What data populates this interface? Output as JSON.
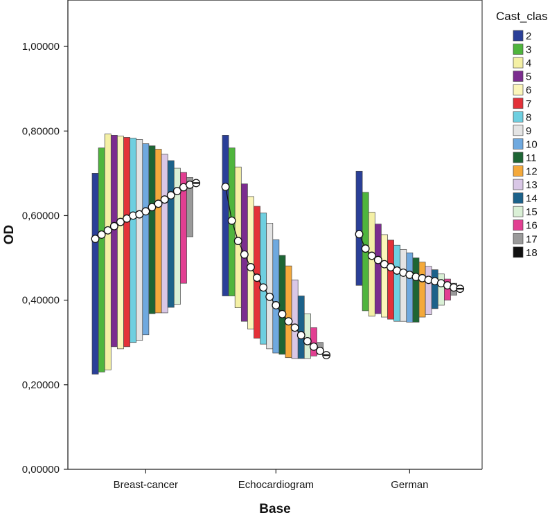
{
  "chart_data": {
    "type": "high-low-close",
    "title": "",
    "xlabel": "Base",
    "ylabel": "OD",
    "ylim": [
      0,
      1.1
    ],
    "yticks": [
      0,
      0.2,
      0.4,
      0.6,
      0.8,
      1.0
    ],
    "ytick_labels": [
      "0,00000",
      "0,20000",
      "0,40000",
      "0,60000",
      "0,80000",
      "1,00000"
    ],
    "categories": [
      "Breast-cancer",
      "Echocardiogram",
      "German"
    ],
    "legend": {
      "title": "Cast_clas",
      "position": "right",
      "entries": [
        "2",
        "3",
        "4",
        "5",
        "6",
        "7",
        "8",
        "9",
        "10",
        "11",
        "12",
        "13",
        "14",
        "15",
        "16",
        "17",
        "18"
      ]
    },
    "series_colors": [
      "#2a3f98",
      "#4fb53d",
      "#f4f0a5",
      "#7b2d8f",
      "#fbf6ba",
      "#e33139",
      "#6ecfe0",
      "#e4e4e4",
      "#6fa9df",
      "#1d6534",
      "#f4a93b",
      "#d9c7e6",
      "#1c628a",
      "#daf0d6",
      "#e23f92",
      "#9a9a9a",
      "#111111"
    ],
    "series": [
      {
        "name": "2",
        "high": [
          0.7,
          0.79,
          0.705
        ],
        "low": [
          0.225,
          0.41,
          0.435
        ],
        "mean": [
          0.545,
          0.668,
          0.556
        ]
      },
      {
        "name": "3",
        "high": [
          0.76,
          0.76,
          0.655
        ],
        "low": [
          0.23,
          0.41,
          0.375
        ],
        "mean": [
          0.555,
          0.588,
          0.522
        ]
      },
      {
        "name": "4",
        "high": [
          0.793,
          0.715,
          0.608
        ],
        "low": [
          0.235,
          0.382,
          0.362
        ],
        "mean": [
          0.565,
          0.54,
          0.505
        ]
      },
      {
        "name": "5",
        "high": [
          0.79,
          0.675,
          0.58
        ],
        "low": [
          0.29,
          0.35,
          0.368
        ],
        "mean": [
          0.575,
          0.508,
          0.495
        ]
      },
      {
        "name": "6",
        "high": [
          0.788,
          0.645,
          0.555
        ],
        "low": [
          0.285,
          0.332,
          0.36
        ],
        "mean": [
          0.585,
          0.478,
          0.485
        ]
      },
      {
        "name": "7",
        "high": [
          0.785,
          0.622,
          0.542
        ],
        "low": [
          0.29,
          0.31,
          0.355
        ],
        "mean": [
          0.593,
          0.453,
          0.478
        ]
      },
      {
        "name": "8",
        "high": [
          0.783,
          0.606,
          0.53
        ],
        "low": [
          0.3,
          0.296,
          0.35
        ],
        "mean": [
          0.6,
          0.43,
          0.47
        ]
      },
      {
        "name": "9",
        "high": [
          0.78,
          0.582,
          0.52
        ],
        "low": [
          0.305,
          0.285,
          0.35
        ],
        "mean": [
          0.603,
          0.408,
          0.465
        ]
      },
      {
        "name": "10",
        "high": [
          0.77,
          0.543,
          0.512
        ],
        "low": [
          0.318,
          0.275,
          0.348
        ],
        "mean": [
          0.61,
          0.388,
          0.46
        ]
      },
      {
        "name": "11",
        "high": [
          0.765,
          0.506,
          0.5
        ],
        "low": [
          0.368,
          0.272,
          0.348
        ],
        "mean": [
          0.62,
          0.367,
          0.455
        ]
      },
      {
        "name": "12",
        "high": [
          0.757,
          0.481,
          0.49
        ],
        "low": [
          0.37,
          0.264,
          0.36
        ],
        "mean": [
          0.628,
          0.35,
          0.452
        ]
      },
      {
        "name": "13",
        "high": [
          0.745,
          0.448,
          0.48
        ],
        "low": [
          0.37,
          0.262,
          0.366
        ],
        "mean": [
          0.638,
          0.335,
          0.448
        ]
      },
      {
        "name": "14",
        "high": [
          0.73,
          0.41,
          0.472
        ],
        "low": [
          0.383,
          0.262,
          0.38
        ],
        "mean": [
          0.648,
          0.317,
          0.445
        ]
      },
      {
        "name": "15",
        "high": [
          0.712,
          0.368,
          0.462
        ],
        "low": [
          0.39,
          0.262,
          0.388
        ],
        "mean": [
          0.658,
          0.303,
          0.44
        ]
      },
      {
        "name": "16",
        "high": [
          0.702,
          0.335,
          0.45
        ],
        "low": [
          0.44,
          0.268,
          0.4
        ],
        "mean": [
          0.667,
          0.29,
          0.435
        ]
      },
      {
        "name": "17",
        "high": [
          0.69,
          0.3,
          0.44
        ],
        "low": [
          0.55,
          0.272,
          0.412
        ],
        "mean": [
          0.673,
          0.28,
          0.43
        ]
      },
      {
        "name": "18",
        "high": [
          0.68,
          0.272,
          0.43
        ],
        "low": [
          0.672,
          0.268,
          0.422
        ],
        "mean": [
          0.677,
          0.27,
          0.427
        ]
      }
    ]
  }
}
